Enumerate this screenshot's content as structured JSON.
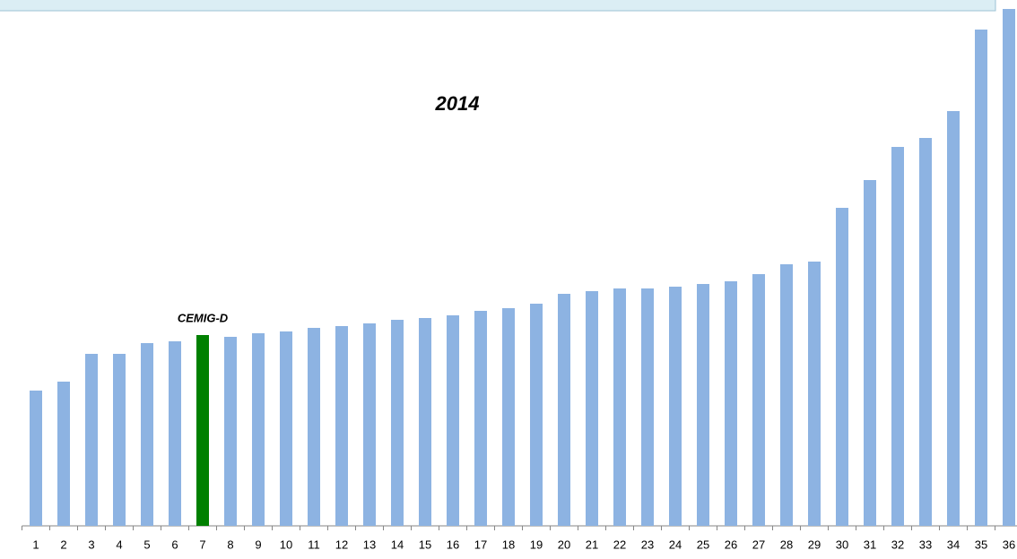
{
  "chart_data": {
    "type": "bar",
    "title": "2014",
    "categories": [
      "1",
      "2",
      "3",
      "4",
      "5",
      "6",
      "7",
      "8",
      "9",
      "10",
      "11",
      "12",
      "13",
      "14",
      "15",
      "16",
      "17",
      "18",
      "19",
      "20",
      "21",
      "22",
      "23",
      "24",
      "25",
      "26",
      "27",
      "28",
      "29",
      "30",
      "31",
      "32",
      "33",
      "34",
      "35",
      "36"
    ],
    "values": [
      151,
      161,
      192,
      192,
      204,
      206,
      213,
      211,
      215,
      217,
      221,
      223,
      226,
      230,
      232,
      235,
      240,
      243,
      248,
      259,
      262,
      265,
      265,
      267,
      270,
      273,
      281,
      292,
      295,
      355,
      386,
      423,
      433,
      463,
      554,
      577
    ],
    "color": "#8db3e2",
    "highlight": {
      "index": 6,
      "color": "#008000",
      "label": "CEMIG-D"
    },
    "ylim": [
      0,
      577
    ]
  }
}
